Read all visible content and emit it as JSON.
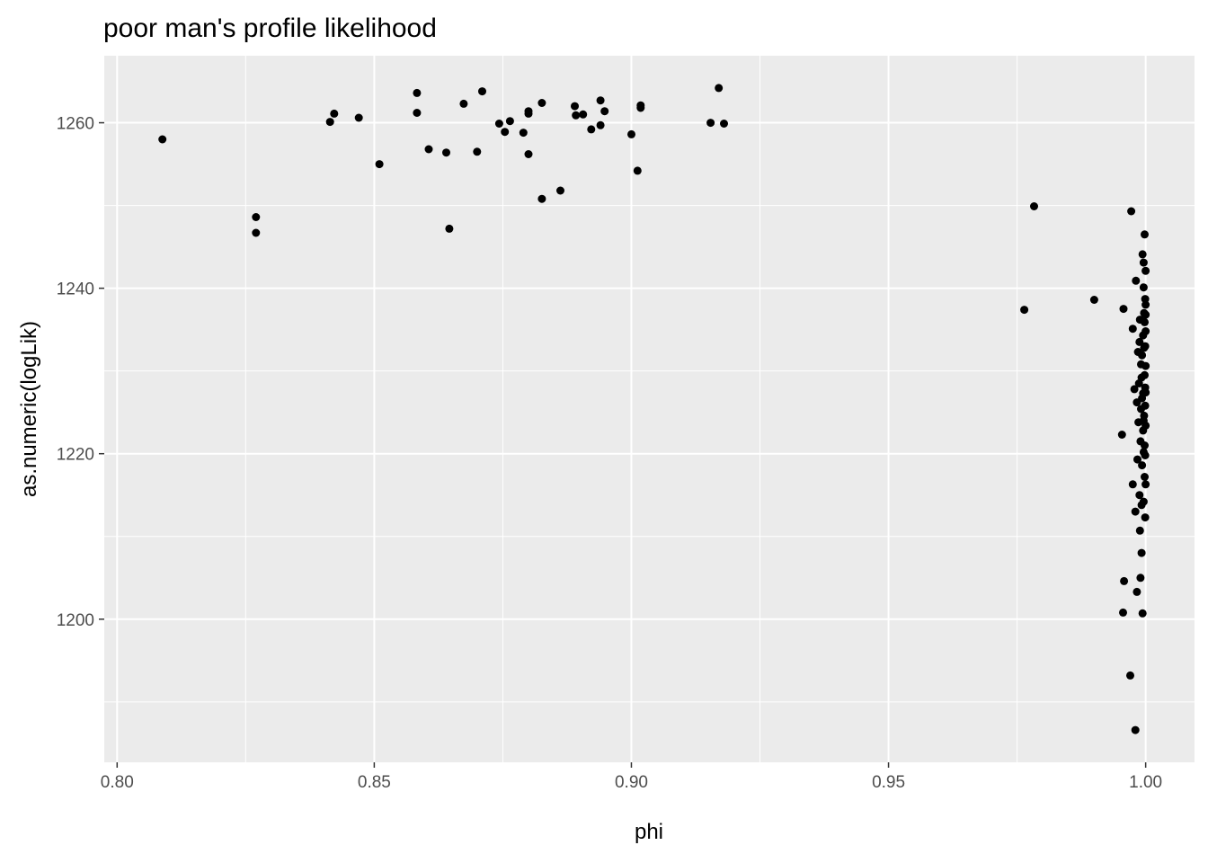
{
  "chart_data": {
    "type": "scatter",
    "title": "poor man's profile likelihood",
    "xlabel": "phi",
    "ylabel": "as.numeric(logLik)",
    "xlim": [
      0.7975,
      1.0095
    ],
    "ylim": [
      1182.7,
      1268.1
    ],
    "xticks": [
      0.8,
      0.85,
      0.9,
      0.95,
      1.0
    ],
    "xtick_labels": [
      "0.80",
      "0.85",
      "0.90",
      "0.95",
      "1.00"
    ],
    "yticks": [
      1200,
      1220,
      1240,
      1260
    ],
    "ytick_labels": [
      "1200",
      "1220",
      "1240",
      "1260"
    ],
    "grid": true,
    "panel_background": "#ebebeb",
    "grid_color": "#ffffff",
    "point_color": "#000000",
    "points": [
      [
        0.8088,
        1258.0
      ],
      [
        0.827,
        1248.6
      ],
      [
        0.827,
        1246.7
      ],
      [
        0.8414,
        1260.1
      ],
      [
        0.8422,
        1261.1
      ],
      [
        0.847,
        1260.6
      ],
      [
        0.851,
        1255.0
      ],
      [
        0.8583,
        1263.6
      ],
      [
        0.8583,
        1261.2
      ],
      [
        0.8606,
        1256.8
      ],
      [
        0.864,
        1256.4
      ],
      [
        0.8646,
        1247.2
      ],
      [
        0.8674,
        1262.3
      ],
      [
        0.87,
        1256.5
      ],
      [
        0.871,
        1263.8
      ],
      [
        0.8743,
        1259.9
      ],
      [
        0.8754,
        1258.9
      ],
      [
        0.8764,
        1260.2
      ],
      [
        0.879,
        1258.8
      ],
      [
        0.88,
        1261.1
      ],
      [
        0.88,
        1261.4
      ],
      [
        0.88,
        1256.2
      ],
      [
        0.8826,
        1262.4
      ],
      [
        0.8826,
        1250.8
      ],
      [
        0.8862,
        1251.8
      ],
      [
        0.889,
        1262.0
      ],
      [
        0.8892,
        1260.9
      ],
      [
        0.8906,
        1261.0
      ],
      [
        0.8922,
        1259.2
      ],
      [
        0.894,
        1262.7
      ],
      [
        0.894,
        1259.7
      ],
      [
        0.8948,
        1261.4
      ],
      [
        0.9,
        1258.6
      ],
      [
        0.9012,
        1254.2
      ],
      [
        0.9018,
        1262.1
      ],
      [
        0.9018,
        1261.8
      ],
      [
        0.9154,
        1260.0
      ],
      [
        0.917,
        1264.2
      ],
      [
        0.918,
        1259.9
      ],
      [
        0.9764,
        1237.4
      ],
      [
        0.9783,
        1249.9
      ],
      [
        0.99,
        1238.6
      ],
      [
        0.9954,
        1222.3
      ],
      [
        0.9957,
        1237.5
      ],
      [
        0.9958,
        1204.6
      ],
      [
        0.9956,
        1200.8
      ],
      [
        0.9972,
        1249.3
      ],
      [
        0.997,
        1193.2
      ],
      [
        0.9975,
        1235.1
      ],
      [
        0.9975,
        1216.3
      ],
      [
        0.9978,
        1227.8
      ],
      [
        0.998,
        1213.0
      ],
      [
        0.998,
        1186.6
      ],
      [
        0.9981,
        1240.9
      ],
      [
        0.9983,
        1226.2
      ],
      [
        0.9983,
        1203.3
      ],
      [
        0.9984,
        1219.3
      ],
      [
        0.9985,
        1232.3
      ],
      [
        0.9986,
        1223.8
      ],
      [
        0.9987,
        1228.5
      ],
      [
        0.9988,
        1233.5
      ],
      [
        0.9988,
        1215.0
      ],
      [
        0.9989,
        1210.7
      ],
      [
        0.9989,
        1236.2
      ],
      [
        0.999,
        1205.0
      ],
      [
        0.999,
        1221.5
      ],
      [
        0.9991,
        1225.4
      ],
      [
        0.9991,
        1230.8
      ],
      [
        0.9992,
        1213.8
      ],
      [
        0.9992,
        1208.0
      ],
      [
        0.9993,
        1218.6
      ],
      [
        0.9993,
        1231.9
      ],
      [
        0.9993,
        1226.7
      ],
      [
        0.9994,
        1244.1
      ],
      [
        0.9994,
        1200.7
      ],
      [
        0.9995,
        1234.3
      ],
      [
        0.9995,
        1222.8
      ],
      [
        0.9995,
        1227.3
      ],
      [
        0.9996,
        1240.1
      ],
      [
        0.9996,
        1243.1
      ],
      [
        0.9996,
        1214.2
      ],
      [
        0.9996,
        1220.2
      ],
      [
        0.9997,
        1237.0
      ],
      [
        0.9997,
        1224.6
      ],
      [
        0.9997,
        1232.8
      ],
      [
        0.9998,
        1229.5
      ],
      [
        0.9998,
        1217.2
      ],
      [
        0.9998,
        1235.9
      ],
      [
        0.9998,
        1246.5
      ],
      [
        0.9998,
        1221.0
      ],
      [
        0.9999,
        1238.7
      ],
      [
        0.9999,
        1225.8
      ],
      [
        0.9999,
        1233.0
      ],
      [
        0.9999,
        1228.0
      ],
      [
        0.9999,
        1219.8
      ],
      [
        1.0,
        1242.1
      ],
      [
        1.0,
        1236.8
      ],
      [
        1.0,
        1230.6
      ],
      [
        1.0,
        1223.4
      ],
      [
        1.0,
        1216.3
      ],
      [
        1.0,
        1227.4
      ],
      [
        1.0,
        1234.8
      ],
      [
        1.0,
        1238.0
      ],
      [
        0.9999,
        1212.3
      ],
      [
        0.9996,
        1224.0
      ],
      [
        0.9992,
        1229.2
      ]
    ]
  }
}
